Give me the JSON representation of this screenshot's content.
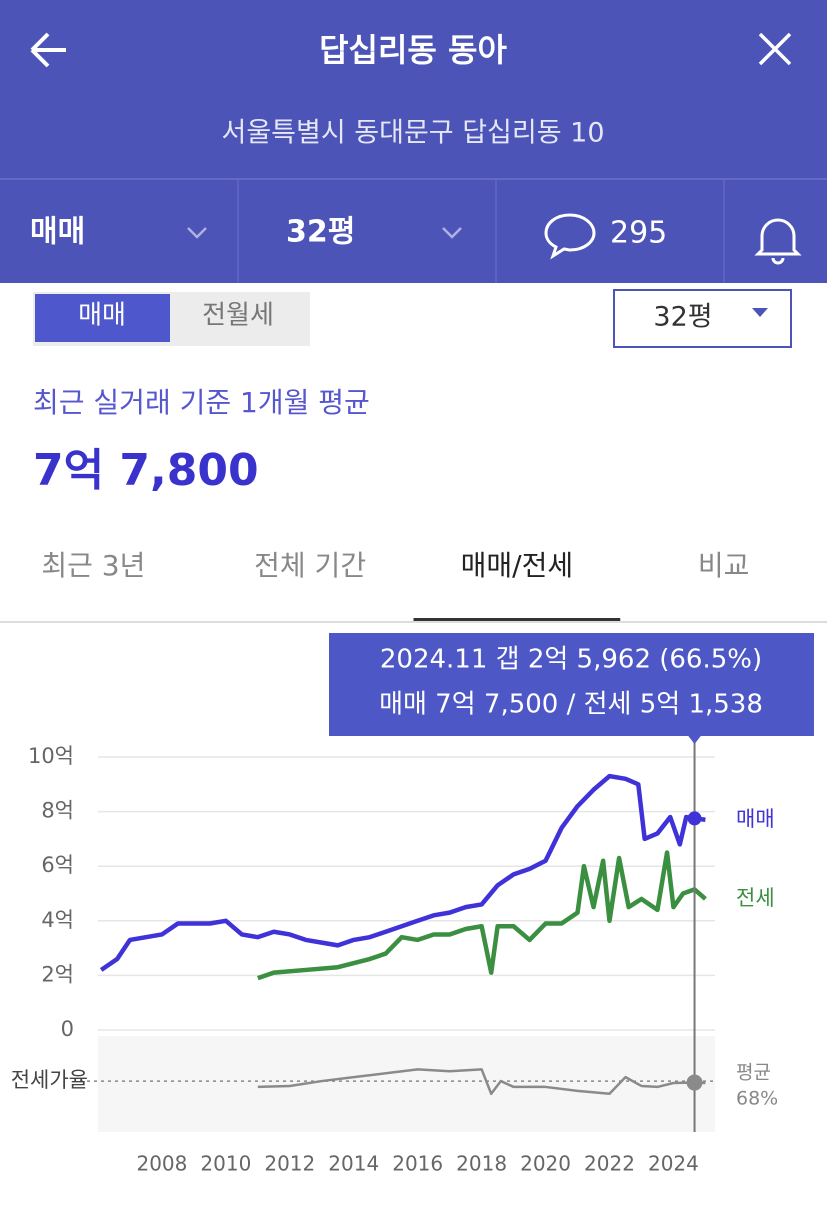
{
  "header": {
    "title": "답십리동 동아",
    "address": "서울특별시 동대문구 답십리동 10"
  },
  "toolbar": {
    "deal": "매매",
    "size": "32평",
    "comments": "295"
  },
  "toggle": {
    "options": [
      "매매",
      "전월세"
    ],
    "active": 0
  },
  "size_select": "32평",
  "summary": {
    "caption": "최근 실거래 기준 1개월 평균",
    "price": "7억 7,800"
  },
  "tabs": {
    "items": [
      "최근 3년",
      "전체 기간",
      "매매/전세",
      "비교"
    ],
    "active": 2
  },
  "chart_data": [
    {
      "type": "line",
      "xlim": [
        2006.0,
        2025.3
      ],
      "ylim": [
        0,
        10
      ],
      "yticks": [
        {
          "value": 0,
          "label": "0"
        },
        {
          "value": 2,
          "label": "2억"
        },
        {
          "value": 4,
          "label": "4억"
        },
        {
          "value": 6,
          "label": "6억"
        },
        {
          "value": 8,
          "label": "8억"
        },
        {
          "value": 10,
          "label": "10억"
        }
      ],
      "grid": true,
      "tooltip": {
        "x": 2024.66,
        "lines": [
          "2024.11  갭 2억 5,962 (66.5%)",
          "매매 7억 7,500 / 전세 5억 1,538"
        ]
      },
      "series": [
        {
          "name": "매매",
          "color": "#3f32d8",
          "x": [
            2006.1,
            2006.6,
            2007.0,
            2007.5,
            2008.0,
            2008.5,
            2009.5,
            2010.0,
            2010.5,
            2011.0,
            2011.5,
            2012.0,
            2012.5,
            2013.0,
            2013.5,
            2014.0,
            2014.5,
            2015.0,
            2015.5,
            2016.0,
            2016.5,
            2017.0,
            2017.5,
            2018.0,
            2018.5,
            2019.0,
            2019.5,
            2020.0,
            2020.5,
            2021.0,
            2021.5,
            2022.0,
            2022.5,
            2022.9,
            2023.1,
            2023.5,
            2023.9,
            2024.2,
            2024.4,
            2024.66,
            2025.0
          ],
          "values": [
            2.2,
            2.6,
            3.3,
            3.4,
            3.5,
            3.9,
            3.9,
            4.0,
            3.5,
            3.4,
            3.6,
            3.5,
            3.3,
            3.2,
            3.1,
            3.3,
            3.4,
            3.6,
            3.8,
            4.0,
            4.2,
            4.3,
            4.5,
            4.6,
            5.3,
            5.7,
            5.9,
            6.2,
            7.4,
            8.2,
            8.8,
            9.3,
            9.2,
            9.0,
            7.0,
            7.2,
            7.8,
            6.8,
            7.8,
            7.75,
            7.7
          ]
        },
        {
          "name": "전세",
          "color": "#3b8f40",
          "x": [
            2011.0,
            2011.5,
            2012.5,
            2013.5,
            2014.5,
            2015.0,
            2015.5,
            2016.0,
            2016.5,
            2017.0,
            2017.5,
            2018.0,
            2018.3,
            2018.5,
            2019.0,
            2019.5,
            2020.0,
            2020.5,
            2021.0,
            2021.2,
            2021.5,
            2021.8,
            2022.0,
            2022.3,
            2022.6,
            2023.0,
            2023.5,
            2023.8,
            2024.0,
            2024.3,
            2024.66,
            2025.0
          ],
          "values": [
            1.9,
            2.1,
            2.2,
            2.3,
            2.6,
            2.8,
            3.4,
            3.3,
            3.5,
            3.5,
            3.7,
            3.8,
            2.1,
            3.8,
            3.8,
            3.3,
            3.9,
            3.9,
            4.3,
            6.0,
            4.5,
            6.2,
            4.0,
            6.3,
            4.5,
            4.8,
            4.4,
            6.5,
            4.5,
            5.0,
            5.15,
            4.8
          ]
        }
      ]
    },
    {
      "type": "line",
      "ylabel": "전세가율",
      "xlim": [
        2006.0,
        2025.3
      ],
      "ylim": [
        20,
        110
      ],
      "xticks": [
        2008,
        2010,
        2012,
        2014,
        2016,
        2018,
        2020,
        2022,
        2024
      ],
      "average": {
        "label": "평균",
        "value": 68,
        "value_label": "68%"
      },
      "series": [
        {
          "name": "전세가율",
          "color": "#8a8a8a",
          "x": [
            2011.0,
            2012.0,
            2013.0,
            2014.0,
            2015.0,
            2016.0,
            2017.0,
            2018.0,
            2018.3,
            2018.6,
            2019.0,
            2020.0,
            2021.0,
            2022.0,
            2022.5,
            2023.0,
            2023.5,
            2024.0,
            2024.66,
            2025.0
          ],
          "values": [
            62,
            63,
            68,
            72,
            76,
            80,
            78,
            80,
            55,
            68,
            62,
            62,
            58,
            55,
            72,
            63,
            62,
            66,
            66.5,
            66
          ]
        }
      ]
    }
  ]
}
